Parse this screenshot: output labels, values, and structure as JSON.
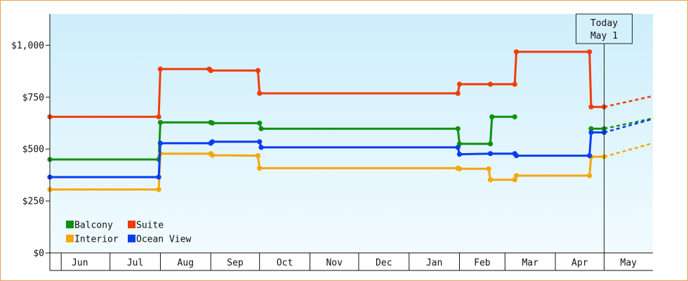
{
  "chart_data": {
    "type": "line",
    "title": "",
    "xlabel": "",
    "ylabel": "",
    "ylim": [
      0,
      1150
    ],
    "y_ticks": [
      {
        "value": 0,
        "label": "$0"
      },
      {
        "value": 250,
        "label": "$250"
      },
      {
        "value": 500,
        "label": "$500"
      },
      {
        "value": 750,
        "label": "$750"
      },
      {
        "value": 1000,
        "label": "$1,000"
      }
    ],
    "x_range": [
      "2014-05-25",
      "2015-05-31"
    ],
    "months": [
      {
        "label": "Jun",
        "start": "2014-06-01"
      },
      {
        "label": "Jul",
        "start": "2014-07-01"
      },
      {
        "label": "Aug",
        "start": "2014-08-01"
      },
      {
        "label": "Sep",
        "start": "2014-09-01"
      },
      {
        "label": "Oct",
        "start": "2014-10-01"
      },
      {
        "label": "Nov",
        "start": "2014-11-01"
      },
      {
        "label": "Dec",
        "start": "2014-12-01"
      },
      {
        "label": "Jan",
        "start": "2015-01-01"
      },
      {
        "label": "Feb",
        "start": "2015-02-01"
      },
      {
        "label": "Mar",
        "start": "2015-03-01"
      },
      {
        "label": "Apr",
        "start": "2015-04-01"
      },
      {
        "label": "May",
        "start": "2015-05-01"
      }
    ],
    "grid": false,
    "legend_position": "bottom-left",
    "today": {
      "line1": "Today",
      "line2": "May 1",
      "date": "2015-05-01"
    },
    "series": [
      {
        "name": "Balcony",
        "color": "#109010",
        "points": [
          [
            "2014-05-25",
            450
          ],
          [
            "2014-07-31",
            450
          ],
          [
            "2014-08-01",
            628
          ],
          [
            "2014-09-01",
            628
          ],
          [
            "2014-09-02",
            625
          ],
          [
            "2014-10-01",
            625
          ],
          [
            "2014-10-02",
            598
          ],
          [
            "2015-01-31",
            598
          ],
          [
            "2015-02-01",
            525
          ],
          [
            "2015-02-20",
            525
          ],
          [
            "2015-02-21",
            655
          ],
          [
            "2015-03-07",
            655
          ]
        ],
        "points_late": [
          [
            "2015-04-23",
            598
          ],
          [
            "2015-05-01",
            598
          ]
        ],
        "projection": [
          [
            "2015-05-01",
            598
          ],
          [
            "2015-05-31",
            648
          ]
        ]
      },
      {
        "name": "Suite",
        "color": "#f03c0a",
        "points": [
          [
            "2014-05-25",
            655
          ],
          [
            "2014-07-31",
            655
          ],
          [
            "2014-08-01",
            885
          ],
          [
            "2014-08-31",
            885
          ],
          [
            "2014-09-01",
            878
          ],
          [
            "2014-09-30",
            878
          ],
          [
            "2014-10-01",
            768
          ],
          [
            "2015-01-31",
            768
          ],
          [
            "2015-02-01",
            812
          ],
          [
            "2015-02-20",
            812
          ],
          [
            "2015-03-07",
            812
          ],
          [
            "2015-03-08",
            968
          ],
          [
            "2015-04-22",
            968
          ],
          [
            "2015-04-23",
            703
          ],
          [
            "2015-05-01",
            703
          ]
        ],
        "projection": [
          [
            "2015-05-01",
            703
          ],
          [
            "2015-05-31",
            755
          ]
        ]
      },
      {
        "name": "Interior",
        "color": "#f5a60a",
        "points": [
          [
            "2014-05-25",
            305
          ],
          [
            "2014-07-31",
            305
          ],
          [
            "2014-08-01",
            478
          ],
          [
            "2014-09-01",
            478
          ],
          [
            "2014-09-02",
            470
          ],
          [
            "2014-09-30",
            468
          ],
          [
            "2014-10-01",
            408
          ],
          [
            "2015-01-31",
            408
          ],
          [
            "2015-02-01",
            405
          ],
          [
            "2015-02-19",
            405
          ],
          [
            "2015-02-20",
            352
          ],
          [
            "2015-03-07",
            352
          ],
          [
            "2015-03-08",
            372
          ],
          [
            "2015-04-22",
            372
          ],
          [
            "2015-04-23",
            463
          ],
          [
            "2015-05-01",
            463
          ]
        ],
        "projection": [
          [
            "2015-05-01",
            463
          ],
          [
            "2015-05-31",
            528
          ]
        ]
      },
      {
        "name": "Ocean View",
        "color": "#0a3cf0",
        "points": [
          [
            "2014-05-25",
            365
          ],
          [
            "2014-07-31",
            365
          ],
          [
            "2014-08-01",
            528
          ],
          [
            "2014-09-01",
            528
          ],
          [
            "2014-09-02",
            535
          ],
          [
            "2014-10-01",
            535
          ],
          [
            "2014-10-02",
            508
          ],
          [
            "2015-01-31",
            508
          ],
          [
            "2015-02-01",
            475
          ],
          [
            "2015-02-20",
            478
          ],
          [
            "2015-03-07",
            478
          ],
          [
            "2015-03-08",
            468
          ],
          [
            "2015-04-22",
            468
          ],
          [
            "2015-04-23",
            580
          ],
          [
            "2015-05-01",
            580
          ]
        ],
        "projection": [
          [
            "2015-05-01",
            580
          ],
          [
            "2015-05-31",
            645
          ]
        ]
      }
    ],
    "legend": [
      {
        "label": "Balcony",
        "color": "#109010"
      },
      {
        "label": "Suite",
        "color": "#f03c0a"
      },
      {
        "label": "Interior",
        "color": "#f5a60a"
      },
      {
        "label": "Ocean View",
        "color": "#0a3cf0"
      }
    ]
  }
}
